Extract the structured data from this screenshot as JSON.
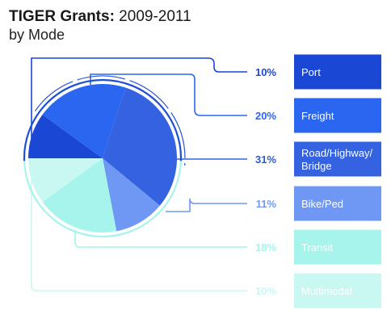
{
  "title": {
    "bold": "TIGER Grants:",
    "rest": " 2009-2011",
    "subtitle": "by Mode"
  },
  "chart_data": {
    "type": "pie",
    "title": "TIGER Grants: 2009-2011",
    "subtitle": "by Mode",
    "slices": [
      {
        "label": "Port",
        "value": 10,
        "pct_label": "10%",
        "lines": [
          "Port"
        ],
        "color": "#1a47d4",
        "text_color": "#1a47d4"
      },
      {
        "label": "Freight",
        "value": 20,
        "pct_label": "20%",
        "lines": [
          "Freight"
        ],
        "color": "#2b66f0",
        "text_color": "#2b66f0"
      },
      {
        "label": "Road/Highway/ Bridge",
        "value": 31,
        "pct_label": "31%",
        "lines": [
          "Road/Highway/",
          "Bridge"
        ],
        "color": "#3562e0",
        "text_color": "#2f5ad6"
      },
      {
        "label": "Bike/Ped",
        "value": 11,
        "pct_label": "11%",
        "lines": [
          "Bike/Ped"
        ],
        "color": "#6f98f5",
        "text_color": "#6f98f5"
      },
      {
        "label": "Transit",
        "value": 18,
        "pct_label": "18%",
        "lines": [
          "Transit"
        ],
        "color": "#a6f4ec",
        "text_color": "#a6f4ec"
      },
      {
        "label": "Multimodal",
        "value": 10,
        "pct_label": "10%",
        "lines": [
          "Multimodal"
        ],
        "color": "#c9f8f3",
        "text_color": "#c9f8f3"
      }
    ]
  }
}
